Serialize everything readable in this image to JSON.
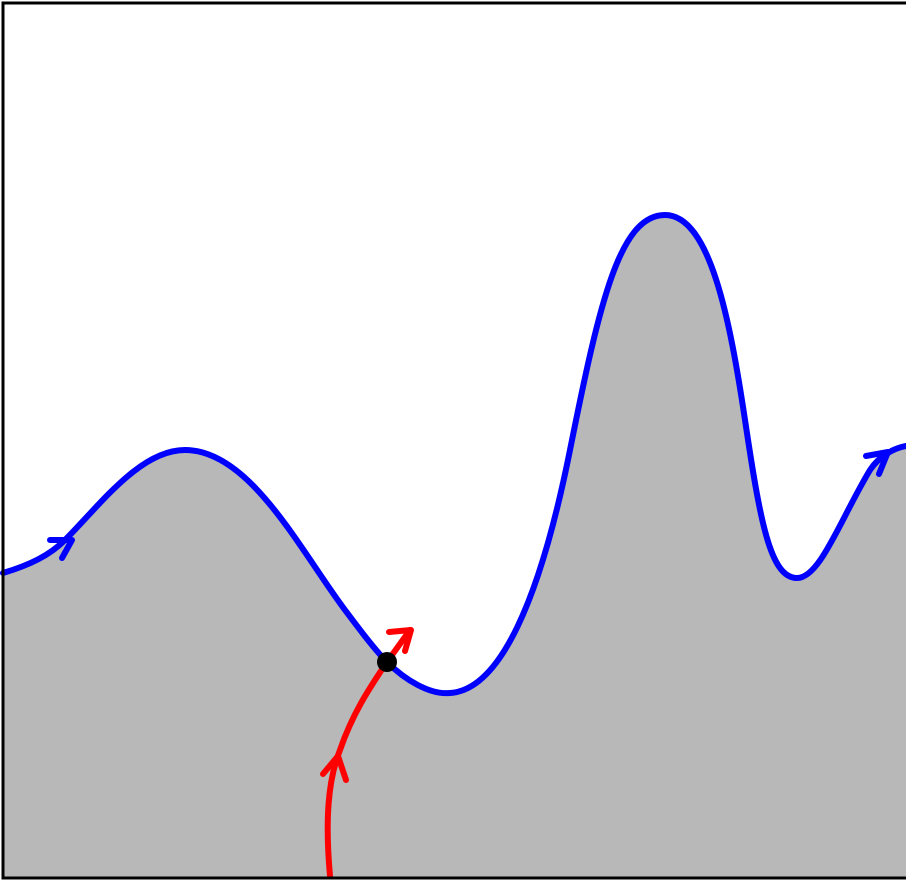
{
  "diagram": {
    "background_color": "#ffffff",
    "frame_color": "#000000",
    "region_fill_color": "#b8b8b8",
    "boundary_curve": {
      "color": "#0000ff",
      "direction_arrows": 2,
      "arrow_end": true
    },
    "trajectory_curve": {
      "color": "#ff0000",
      "direction_arrows": 1,
      "arrow_end": true
    },
    "crossing_point": {
      "color": "#000000"
    }
  }
}
